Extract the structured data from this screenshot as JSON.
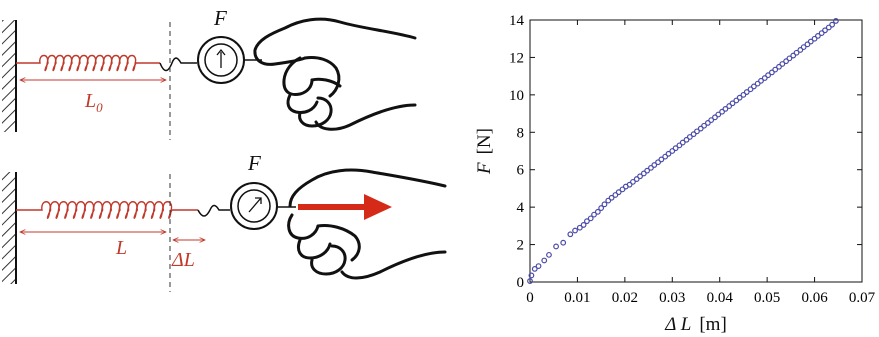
{
  "diagram": {
    "top": {
      "gauge_label": "F",
      "length_label": "L",
      "length_subscript": "0"
    },
    "bottom": {
      "gauge_label": "F",
      "length_label": "L",
      "delta_label": "ΔL"
    },
    "colors": {
      "spring": "#c0392b",
      "arrow": "#d62a18",
      "ink": "#111111",
      "label": "#c0392b"
    }
  },
  "chart_data": {
    "type": "scatter",
    "title": "",
    "xlabel": "Δ L",
    "xunit": "[m]",
    "ylabel": "F",
    "yunit": "[N]",
    "xlim": [
      0,
      0.07
    ],
    "ylim": [
      0,
      14
    ],
    "xticks": [
      "0",
      "0.01",
      "0.02",
      "0.03",
      "0.04",
      "0.05",
      "0.06",
      "0.07"
    ],
    "yticks": [
      "0",
      "2",
      "4",
      "6",
      "8",
      "10",
      "12",
      "14"
    ],
    "grid": false,
    "marker_color": "#4a4aa8",
    "x": [
      0.0,
      0.0003,
      0.001,
      0.0018,
      0.003,
      0.004,
      0.0055,
      0.007,
      0.0085,
      0.0095,
      0.0105,
      0.0113,
      0.012,
      0.0128,
      0.0135,
      0.0143,
      0.015,
      0.0157,
      0.0165,
      0.0172,
      0.018,
      0.0187,
      0.0195,
      0.0202,
      0.021,
      0.0217,
      0.0225,
      0.0232,
      0.024,
      0.0247,
      0.0255,
      0.0262,
      0.027,
      0.0277,
      0.0285,
      0.0292,
      0.03,
      0.0307,
      0.0315,
      0.0322,
      0.033,
      0.0337,
      0.0345,
      0.0352,
      0.036,
      0.0367,
      0.0375,
      0.0382,
      0.039,
      0.0397,
      0.0405,
      0.0412,
      0.042,
      0.0427,
      0.0435,
      0.0442,
      0.045,
      0.0457,
      0.0465,
      0.0472,
      0.048,
      0.0487,
      0.0495,
      0.0502,
      0.051,
      0.0517,
      0.0525,
      0.0532,
      0.054,
      0.0547,
      0.0555,
      0.0562,
      0.057,
      0.0577,
      0.0585,
      0.0592,
      0.06,
      0.0607,
      0.0615,
      0.0622,
      0.063,
      0.0637,
      0.0645
    ],
    "y": [
      0.05,
      0.35,
      0.7,
      0.85,
      1.15,
      1.45,
      1.9,
      2.1,
      2.55,
      2.75,
      2.9,
      3.05,
      3.25,
      3.4,
      3.6,
      3.75,
      3.95,
      4.15,
      4.35,
      4.5,
      4.65,
      4.8,
      4.95,
      5.1,
      5.2,
      5.35,
      5.5,
      5.65,
      5.8,
      5.95,
      6.1,
      6.25,
      6.4,
      6.55,
      6.7,
      6.85,
      7.0,
      7.15,
      7.3,
      7.45,
      7.6,
      7.75,
      7.9,
      8.05,
      8.2,
      8.35,
      8.5,
      8.65,
      8.8,
      8.95,
      9.1,
      9.25,
      9.4,
      9.55,
      9.7,
      9.85,
      10.0,
      10.15,
      10.3,
      10.45,
      10.6,
      10.75,
      10.9,
      11.05,
      11.2,
      11.35,
      11.5,
      11.65,
      11.8,
      11.95,
      12.1,
      12.25,
      12.4,
      12.55,
      12.7,
      12.85,
      13.0,
      13.15,
      13.3,
      13.45,
      13.6,
      13.75,
      13.95
    ]
  }
}
